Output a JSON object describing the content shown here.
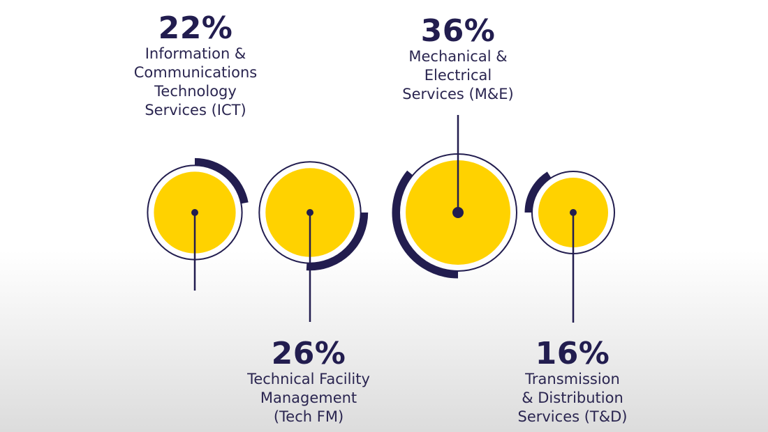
{
  "chart_data": {
    "type": "pie",
    "title": "",
    "unit": "%",
    "colors": {
      "fill": "#ffd200",
      "ring": "#221d4f"
    },
    "series": [
      {
        "label": "Information & Communications Technology Services (ICT)",
        "value": 22,
        "display": "22%",
        "lines": "Information &\nCommunications\nTechnology\nServices (ICT)"
      },
      {
        "label": "Technical Facility Management (Tech FM)",
        "value": 26,
        "display": "26%",
        "lines": "Technical Facility\nManagement\n(Tech FM)"
      },
      {
        "label": "Mechanical & Electrical Services (M&E)",
        "value": 36,
        "display": "36%",
        "lines": "Mechanical &\nElectrical\nServices (M&E)"
      },
      {
        "label": "Transmission & Distribution Services (T&D)",
        "value": 16,
        "display": "16%",
        "lines": "Transmission\n& Distribution\nServices (T&D)"
      }
    ]
  }
}
